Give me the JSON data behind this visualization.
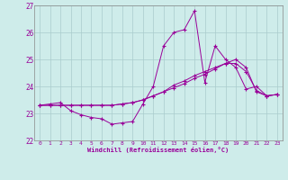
{
  "xlabel": "Windchill (Refroidissement éolien,°C)",
  "bg_color": "#ceecea",
  "line_color": "#990099",
  "grid_color": "#aacccc",
  "xlim": [
    -0.5,
    23.5
  ],
  "ylim": [
    22,
    27
  ],
  "yticks": [
    22,
    23,
    24,
    25,
    26,
    27
  ],
  "xticks": [
    0,
    1,
    2,
    3,
    4,
    5,
    6,
    7,
    8,
    9,
    10,
    11,
    12,
    13,
    14,
    15,
    16,
    17,
    18,
    19,
    20,
    21,
    22,
    23
  ],
  "series1_x": [
    0,
    1,
    2,
    3,
    4,
    5,
    6,
    7,
    8,
    9,
    10,
    11,
    12,
    13,
    14,
    15,
    16,
    17,
    18,
    19,
    20,
    21,
    22,
    23
  ],
  "series1_y": [
    23.3,
    23.35,
    23.4,
    23.1,
    22.95,
    22.85,
    22.8,
    22.6,
    22.65,
    22.7,
    23.35,
    24.0,
    25.5,
    26.0,
    26.1,
    26.8,
    24.15,
    25.5,
    25.0,
    24.7,
    23.9,
    24.0,
    23.65,
    23.7
  ],
  "series2_x": [
    0,
    1,
    2,
    3,
    4,
    5,
    6,
    7,
    8,
    9,
    10,
    11,
    12,
    13,
    14,
    15,
    16,
    17,
    18,
    19,
    20,
    21,
    22,
    23
  ],
  "series2_y": [
    23.3,
    23.3,
    23.3,
    23.3,
    23.3,
    23.3,
    23.3,
    23.3,
    23.35,
    23.4,
    23.5,
    23.65,
    23.8,
    23.95,
    24.1,
    24.3,
    24.45,
    24.65,
    24.85,
    25.0,
    24.7,
    23.8,
    23.65,
    23.7
  ],
  "series3_x": [
    0,
    1,
    2,
    3,
    4,
    5,
    6,
    7,
    8,
    9,
    10,
    11,
    12,
    13,
    14,
    15,
    16,
    17,
    18,
    19,
    20,
    21,
    22,
    23
  ],
  "series3_y": [
    23.3,
    23.3,
    23.3,
    23.3,
    23.3,
    23.3,
    23.3,
    23.3,
    23.35,
    23.4,
    23.5,
    23.65,
    23.8,
    24.05,
    24.2,
    24.4,
    24.55,
    24.7,
    24.85,
    24.85,
    24.55,
    23.85,
    23.65,
    23.7
  ]
}
